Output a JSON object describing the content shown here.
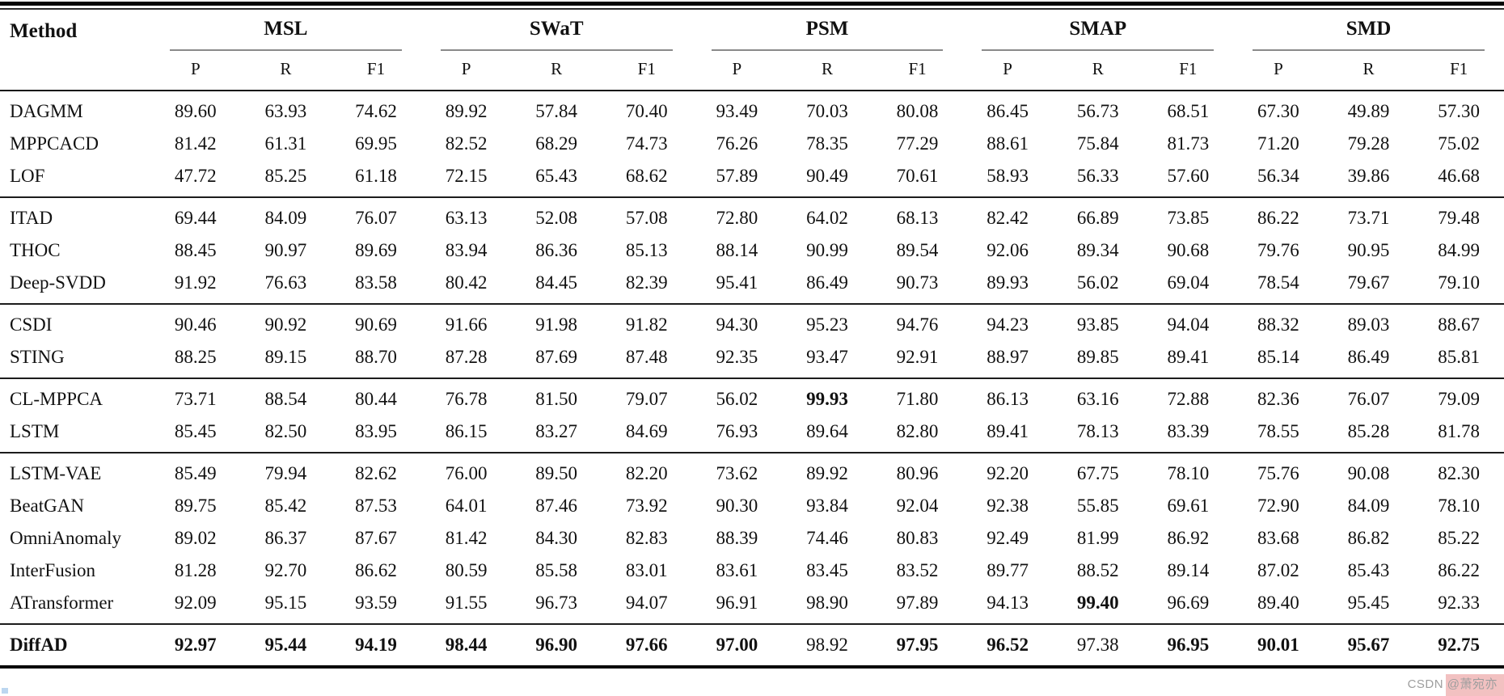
{
  "table": {
    "method_header": "Method",
    "groups": [
      {
        "label": "MSL",
        "sub": [
          "P",
          "R",
          "F1"
        ]
      },
      {
        "label": "SWaT",
        "sub": [
          "P",
          "R",
          "F1"
        ]
      },
      {
        "label": "PSM",
        "sub": [
          "P",
          "R",
          "F1"
        ]
      },
      {
        "label": "SMAP",
        "sub": [
          "P",
          "R",
          "F1"
        ]
      },
      {
        "label": "SMD",
        "sub": [
          "P",
          "R",
          "F1"
        ]
      }
    ],
    "row_groups": [
      [
        {
          "method": "DAGMM",
          "values": [
            "89.60",
            "63.93",
            "74.62",
            "89.92",
            "57.84",
            "70.40",
            "93.49",
            "70.03",
            "80.08",
            "86.45",
            "56.73",
            "68.51",
            "67.30",
            "49.89",
            "57.30"
          ],
          "bold": []
        },
        {
          "method": "MPPCACD",
          "values": [
            "81.42",
            "61.31",
            "69.95",
            "82.52",
            "68.29",
            "74.73",
            "76.26",
            "78.35",
            "77.29",
            "88.61",
            "75.84",
            "81.73",
            "71.20",
            "79.28",
            "75.02"
          ],
          "bold": []
        },
        {
          "method": "LOF",
          "values": [
            "47.72",
            "85.25",
            "61.18",
            "72.15",
            "65.43",
            "68.62",
            "57.89",
            "90.49",
            "70.61",
            "58.93",
            "56.33",
            "57.60",
            "56.34",
            "39.86",
            "46.68"
          ],
          "bold": []
        }
      ],
      [
        {
          "method": "ITAD",
          "values": [
            "69.44",
            "84.09",
            "76.07",
            "63.13",
            "52.08",
            "57.08",
            "72.80",
            "64.02",
            "68.13",
            "82.42",
            "66.89",
            "73.85",
            "86.22",
            "73.71",
            "79.48"
          ],
          "bold": []
        },
        {
          "method": "THOC",
          "values": [
            "88.45",
            "90.97",
            "89.69",
            "83.94",
            "86.36",
            "85.13",
            "88.14",
            "90.99",
            "89.54",
            "92.06",
            "89.34",
            "90.68",
            "79.76",
            "90.95",
            "84.99"
          ],
          "bold": []
        },
        {
          "method": "Deep-SVDD",
          "values": [
            "91.92",
            "76.63",
            "83.58",
            "80.42",
            "84.45",
            "82.39",
            "95.41",
            "86.49",
            "90.73",
            "89.93",
            "56.02",
            "69.04",
            "78.54",
            "79.67",
            "79.10"
          ],
          "bold": []
        }
      ],
      [
        {
          "method": "CSDI",
          "values": [
            "90.46",
            "90.92",
            "90.69",
            "91.66",
            "91.98",
            "91.82",
            "94.30",
            "95.23",
            "94.76",
            "94.23",
            "93.85",
            "94.04",
            "88.32",
            "89.03",
            "88.67"
          ],
          "bold": []
        },
        {
          "method": "STING",
          "values": [
            "88.25",
            "89.15",
            "88.70",
            "87.28",
            "87.69",
            "87.48",
            "92.35",
            "93.47",
            "92.91",
            "88.97",
            "89.85",
            "89.41",
            "85.14",
            "86.49",
            "85.81"
          ],
          "bold": []
        }
      ],
      [
        {
          "method": "CL-MPPCA",
          "values": [
            "73.71",
            "88.54",
            "80.44",
            "76.78",
            "81.50",
            "79.07",
            "56.02",
            "99.93",
            "71.80",
            "86.13",
            "63.16",
            "72.88",
            "82.36",
            "76.07",
            "79.09"
          ],
          "bold": [
            7
          ]
        },
        {
          "method": "LSTM",
          "values": [
            "85.45",
            "82.50",
            "83.95",
            "86.15",
            "83.27",
            "84.69",
            "76.93",
            "89.64",
            "82.80",
            "89.41",
            "78.13",
            "83.39",
            "78.55",
            "85.28",
            "81.78"
          ],
          "bold": []
        }
      ],
      [
        {
          "method": "LSTM-VAE",
          "values": [
            "85.49",
            "79.94",
            "82.62",
            "76.00",
            "89.50",
            "82.20",
            "73.62",
            "89.92",
            "80.96",
            "92.20",
            "67.75",
            "78.10",
            "75.76",
            "90.08",
            "82.30"
          ],
          "bold": []
        },
        {
          "method": "BeatGAN",
          "values": [
            "89.75",
            "85.42",
            "87.53",
            "64.01",
            "87.46",
            "73.92",
            "90.30",
            "93.84",
            "92.04",
            "92.38",
            "55.85",
            "69.61",
            "72.90",
            "84.09",
            "78.10"
          ],
          "bold": []
        },
        {
          "method": "OmniAnomaly",
          "values": [
            "89.02",
            "86.37",
            "87.67",
            "81.42",
            "84.30",
            "82.83",
            "88.39",
            "74.46",
            "80.83",
            "92.49",
            "81.99",
            "86.92",
            "83.68",
            "86.82",
            "85.22"
          ],
          "bold": []
        },
        {
          "method": "InterFusion",
          "values": [
            "81.28",
            "92.70",
            "86.62",
            "80.59",
            "85.58",
            "83.01",
            "83.61",
            "83.45",
            "83.52",
            "89.77",
            "88.52",
            "89.14",
            "87.02",
            "85.43",
            "86.22"
          ],
          "bold": []
        },
        {
          "method": "ATransformer",
          "values": [
            "92.09",
            "95.15",
            "93.59",
            "91.55",
            "96.73",
            "94.07",
            "96.91",
            "98.90",
            "97.89",
            "94.13",
            "99.40",
            "96.69",
            "89.40",
            "95.45",
            "92.33"
          ],
          "bold": [
            10
          ]
        }
      ],
      [
        {
          "method": "DiffAD",
          "method_bold": true,
          "values": [
            "92.97",
            "95.44",
            "94.19",
            "98.44",
            "96.90",
            "97.66",
            "97.00",
            "98.92",
            "97.95",
            "96.52",
            "97.38",
            "96.95",
            "90.01",
            "95.67",
            "92.75"
          ],
          "bold": [
            0,
            1,
            2,
            3,
            4,
            5,
            6,
            8,
            9,
            11,
            12,
            13,
            14
          ]
        }
      ]
    ]
  },
  "watermark": {
    "text": "CSDN @萧宛亦",
    "text_color": "#9e9e9e",
    "highlight_color": "#f2c1c1"
  }
}
